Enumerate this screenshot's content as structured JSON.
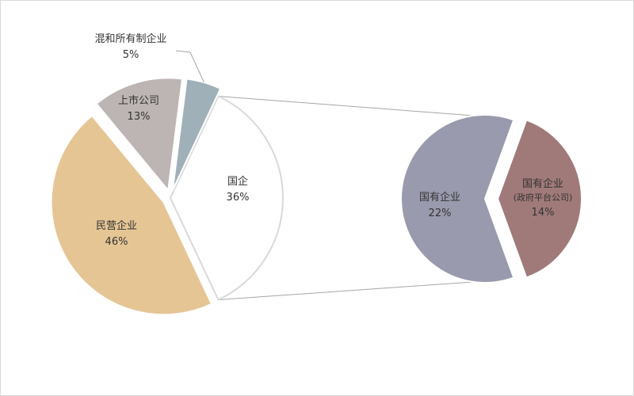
{
  "chart_data": [
    {
      "type": "pie",
      "slices": [
        {
          "label": "国企",
          "value": 36,
          "value_text": "36%",
          "color": "#ffffff",
          "exploded": false
        },
        {
          "label": "民营企业",
          "value": 46,
          "value_text": "46%",
          "color": "#e6c595",
          "exploded": true
        },
        {
          "label": "上市公司",
          "value": 13,
          "value_text": "13%",
          "color": "#bdb5b3",
          "exploded": true
        },
        {
          "label": "混和所有制企业",
          "value": 5,
          "value_text": "5%",
          "color": "#9fb0b8",
          "exploded": true
        }
      ]
    },
    {
      "type": "pie",
      "breakdown_of": "国企",
      "slices": [
        {
          "label": "国有企业",
          "value": 22,
          "value_text": "22%",
          "color": "#9a9aae"
        },
        {
          "label": "国有企业",
          "sublabel": "(政府平台公司)",
          "value": 14,
          "value_text": "14%",
          "color": "#a07a79"
        }
      ]
    }
  ]
}
